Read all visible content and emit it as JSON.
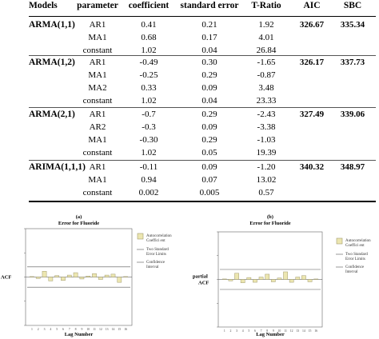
{
  "table": {
    "headers": [
      "Models",
      "parameter",
      "coefficient",
      "standard error",
      "T-Ratio",
      "AIC",
      "SBC"
    ],
    "models": [
      {
        "name": "ARMA(1,1)",
        "aic": "326.67",
        "sbc": "335.34",
        "rows": [
          {
            "param": "AR1",
            "coef": "0.41",
            "se": "0.21",
            "t": "1.92"
          },
          {
            "param": "MA1",
            "coef": "0.68",
            "se": "0.17",
            "t": "4.01"
          },
          {
            "param": "constant",
            "coef": "1.02",
            "se": "0.04",
            "t": "26.84"
          }
        ]
      },
      {
        "name": "ARMA(1,2)",
        "aic": "326.17",
        "sbc": "337.73",
        "rows": [
          {
            "param": "AR1",
            "coef": "-0.49",
            "se": "0.30",
            "t": "-1.65"
          },
          {
            "param": "MA1",
            "coef": "-0.25",
            "se": "0.29",
            "t": "-0.87"
          },
          {
            "param": "MA2",
            "coef": "0.33",
            "se": "0.09",
            "t": "3.48"
          },
          {
            "param": "constant",
            "coef": "1.02",
            "se": "0.04",
            "t": "23.33"
          }
        ]
      },
      {
        "name": "ARMA(2,1)",
        "aic": "327.49",
        "sbc": "339.06",
        "rows": [
          {
            "param": "AR1",
            "coef": "-0.7",
            "se": "0.29",
            "t": "-2.43"
          },
          {
            "param": "AR2",
            "coef": "-0.3",
            "se": "0.09",
            "t": "-3.38"
          },
          {
            "param": "MA1",
            "coef": "-0.30",
            "se": "0.29",
            "t": "-1.03"
          },
          {
            "param": "constant",
            "coef": "1.02",
            "se": "0.05",
            "t": "19.39"
          }
        ]
      },
      {
        "name": "ARIMA(1,1,1)",
        "aic": "340.32",
        "sbc": "348.97",
        "rows": [
          {
            "param": "AR1",
            "coef": "-0.11",
            "se": "0.09",
            "t": "-1.20"
          },
          {
            "param": "MA1",
            "coef": "0.94",
            "se": "0.07",
            "t": "13.02"
          },
          {
            "param": "constant",
            "coef": "0.002",
            "se": "0.005",
            "t": "0.57"
          }
        ]
      }
    ]
  },
  "chart_data": [
    {
      "type": "bar",
      "panel_label": "(a)",
      "title": "Error for Fluoride",
      "ylabel": "ACF",
      "xlabel": "Lag Number",
      "categories": [
        "1",
        "2",
        "3",
        "4",
        "5",
        "6",
        "7",
        "8",
        "9",
        "10",
        "11",
        "12",
        "13",
        "14",
        "15",
        "16"
      ],
      "values": [
        0.01,
        -0.03,
        0.12,
        -0.08,
        0.03,
        -0.07,
        0.04,
        0.09,
        -0.04,
        0.02,
        0.07,
        -0.05,
        0.04,
        0.06,
        -0.11,
        0.01
      ],
      "ylim": [
        -1,
        1
      ],
      "upper_limit": 0.21,
      "lower_limit": -0.21,
      "legend": [
        "Autocorrelation Coeffici ent",
        "Two Standard Error Limits",
        "Confidence Interval"
      ],
      "legend_position": "right",
      "bar_color": "#ece6b0",
      "border_color": "#a29c70"
    },
    {
      "type": "bar",
      "panel_label": "(b)",
      "title": "Error for Fluoride",
      "ylabel": "partial ACF",
      "xlabel": "Lag Number",
      "categories": [
        "1",
        "2",
        "3",
        "4",
        "5",
        "6",
        "7",
        "8",
        "9",
        "10",
        "11",
        "12",
        "13",
        "14",
        "15",
        "16"
      ],
      "values": [
        0.01,
        -0.03,
        0.13,
        -0.07,
        0.04,
        -0.06,
        0.05,
        0.11,
        -0.05,
        0.03,
        0.16,
        -0.06,
        0.05,
        0.08,
        -0.05,
        0.01
      ],
      "ylim": [
        -1,
        1
      ],
      "upper_limit": 0.21,
      "lower_limit": -0.21,
      "legend": [
        "Autocorrelation Coeffici ent",
        "Two Standard Error Limits",
        "Confidence Interval"
      ],
      "legend_position": "right",
      "bar_color": "#ece6b0",
      "border_color": "#a29c70"
    }
  ]
}
